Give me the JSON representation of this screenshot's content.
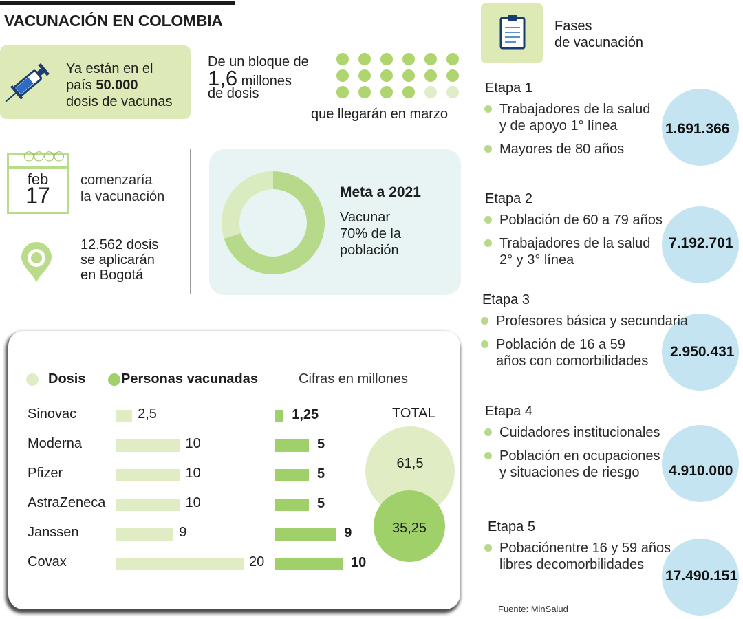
{
  "title": "VACUNACIÓN EN COLOMBIA",
  "arrival": {
    "line1": "Ya están en el",
    "line2_prefix": "país ",
    "line2_bold": "50.000",
    "line3": "dosis de vacunas"
  },
  "block": {
    "prefix": "De un bloque de",
    "amount": "1,6",
    "unit": "millones",
    "suffix": "de dosis",
    "sub": "que llegarán en marzo",
    "dots_total": 18,
    "dots_full": 16
  },
  "calendar": {
    "month": "feb",
    "day": "17",
    "text1": "comenzaría",
    "text2": "la vacunación"
  },
  "bogota": {
    "line1": "12.562 dosis",
    "line2": "se aplicarán",
    "line3": "en Bogotá"
  },
  "meta": {
    "title": "Meta a 2021",
    "line1": "Vacunar",
    "line2": "70% de la",
    "line3": "población",
    "percent": 70
  },
  "colors": {
    "dosis": "#e0edc4",
    "personas": "#9fd06a",
    "etapa_bubble": "#c4e4f2",
    "accent": "#b6d98a"
  },
  "chart_data": {
    "type": "bar",
    "legend": [
      "Dosis",
      "Personas vacunadas"
    ],
    "note": "Cifras en millones",
    "categories": [
      "Sinovac",
      "Moderna",
      "Pfizer",
      "AstraZeneca",
      "Janssen",
      "Covax"
    ],
    "series": [
      {
        "name": "Dosis",
        "values": [
          2.5,
          10,
          10,
          10,
          9,
          20
        ],
        "labels": [
          "2,5",
          "10",
          "10",
          "10",
          "9",
          "20"
        ]
      },
      {
        "name": "Personas vacunadas",
        "values": [
          1.25,
          5,
          5,
          5,
          9,
          10
        ],
        "labels": [
          "1,25",
          "5",
          "5",
          "5",
          "9",
          "10"
        ]
      }
    ],
    "total_label": "TOTAL",
    "totals": {
      "dosis": "61,5",
      "personas": "35,25"
    }
  },
  "fases": {
    "title1": "Fases",
    "title2": "de vacunación",
    "etapas": [
      {
        "name": "Etapa 1",
        "items": [
          [
            "Trabajadores de la salud",
            "y de apoyo 1° línea"
          ],
          [
            "Mayores de 80 años"
          ]
        ],
        "total": "1.691.366"
      },
      {
        "name": "Etapa 2",
        "items": [
          [
            "Población de 60 a 79 años"
          ],
          [
            "Trabajadores de la salud",
            "2° y 3° línea"
          ]
        ],
        "total": "7.192.701"
      },
      {
        "name": "Etapa 3",
        "items": [
          [
            "Profesores básica y secundaria"
          ],
          [
            "Población de 16 a 59",
            "años con comorbilidades"
          ]
        ],
        "total": "2.950.431"
      },
      {
        "name": "Etapa 4",
        "items": [
          [
            "Cuidadores institucionales"
          ],
          [
            "Población en ocupaciones",
            "y situaciones de riesgo"
          ]
        ],
        "total": "4.910.000"
      },
      {
        "name": "Etapa 5",
        "items": [
          [
            "Pobaciónentre 16 y 59 años",
            "libres decomorbilidades"
          ]
        ],
        "total": "17.490.151"
      }
    ]
  },
  "source": "Fuente: MinSalud"
}
